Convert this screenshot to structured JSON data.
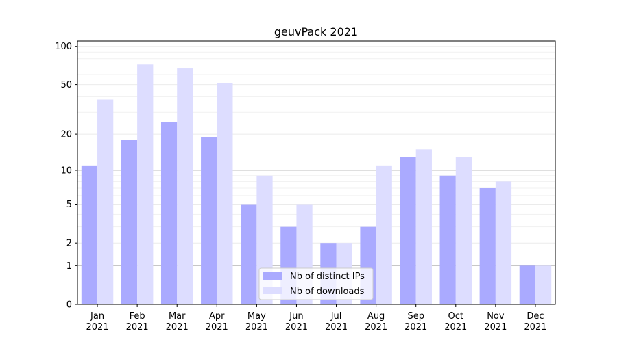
{
  "chart_data": {
    "type": "bar",
    "title": "geuvPack 2021",
    "xlabel": "",
    "ylabel": "",
    "y_scale": "log(1+y)",
    "ylim": [
      0,
      110
    ],
    "y_ticks": [
      0,
      1,
      2,
      5,
      10,
      20,
      50,
      100
    ],
    "grid": true,
    "legend_position": "bottom-center",
    "categories": [
      "Jan\n2021",
      "Feb\n2021",
      "Mar\n2021",
      "Apr\n2021",
      "May\n2021",
      "Jun\n2021",
      "Jul\n2021",
      "Aug\n2021",
      "Sep\n2021",
      "Oct\n2021",
      "Nov\n2021",
      "Dec\n2021"
    ],
    "series": [
      {
        "name": "Nb of distinct IPs",
        "color": "#aaaaff",
        "values": [
          11,
          18,
          25,
          19,
          5,
          3,
          2,
          3,
          13,
          9,
          7,
          1
        ]
      },
      {
        "name": "Nb of downloads",
        "color": "#ddddff",
        "values": [
          38,
          72,
          67,
          51,
          9,
          5,
          2,
          11,
          15,
          13,
          8,
          1
        ]
      }
    ]
  }
}
